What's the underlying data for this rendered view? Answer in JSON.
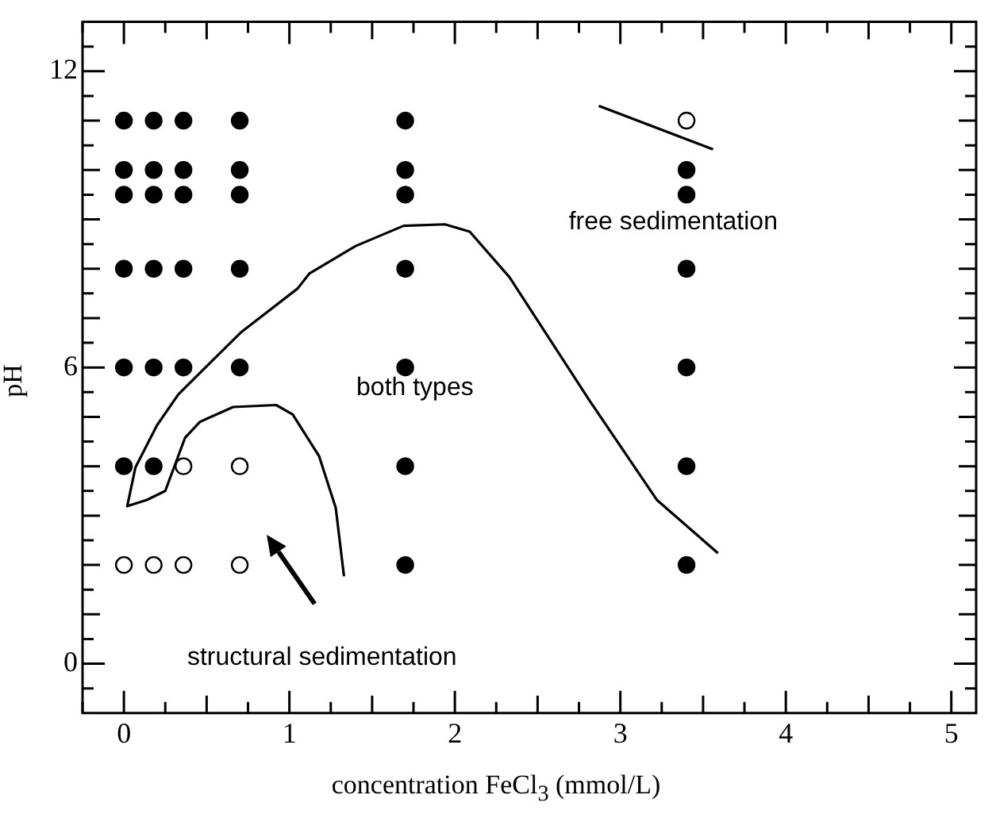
{
  "chart_data": {
    "type": "scatter",
    "xlabel": "concentration FeCl$_{3}$ (mmol/L)",
    "ylabel": "pH",
    "xlim": [
      -0.25,
      5.15
    ],
    "ylim": [
      -1,
      13
    ],
    "xticks": [
      {
        "value": -0.25,
        "label": null
      },
      0,
      {
        "value": 0.25,
        "label": null
      },
      {
        "value": 0.5,
        "label": null
      },
      {
        "value": 0.75,
        "label": null
      },
      1,
      {
        "value": 1.25,
        "label": null
      },
      {
        "value": 1.5,
        "label": null
      },
      {
        "value": 1.75,
        "label": null
      },
      2,
      {
        "value": 2.25,
        "label": null
      },
      {
        "value": 2.5,
        "label": null
      },
      {
        "value": 2.75,
        "label": null
      },
      3,
      {
        "value": 3.25,
        "label": null
      },
      {
        "value": 3.5,
        "label": null
      },
      {
        "value": 3.75,
        "label": null
      },
      4,
      {
        "value": 4.25,
        "label": null
      },
      {
        "value": 4.5,
        "label": null
      },
      {
        "value": 4.75,
        "label": null
      },
      5
    ],
    "yticks": [
      {
        "value": -0.5,
        "label": null
      },
      0,
      {
        "value": 0.5,
        "label": null
      },
      {
        "value": 1,
        "label": null
      },
      {
        "value": 1.5,
        "label": null
      },
      {
        "value": 2,
        "label": null
      },
      {
        "value": 2.5,
        "label": null
      },
      {
        "value": 3,
        "label": null
      },
      {
        "value": 3.5,
        "label": null
      },
      {
        "value": 4,
        "label": null
      },
      {
        "value": 4.5,
        "label": null
      },
      {
        "value": 5,
        "label": null
      },
      {
        "value": 5.5,
        "label": null
      },
      6,
      {
        "value": 6.5,
        "label": null
      },
      {
        "value": 7,
        "label": null
      },
      {
        "value": 7.5,
        "label": null
      },
      {
        "value": 8,
        "label": null
      },
      {
        "value": 8.5,
        "label": null
      },
      {
        "value": 9,
        "label": null
      },
      {
        "value": 9.5,
        "label": null
      },
      {
        "value": 10,
        "label": null
      },
      {
        "value": 10.5,
        "label": null
      },
      {
        "value": 11,
        "label": null
      },
      {
        "value": 11.5,
        "label": null
      },
      12,
      {
        "value": 12.5,
        "label": null
      }
    ],
    "grid": false,
    "legend": false,
    "series": [
      {
        "type": "scatter",
        "marker": "circle",
        "color": "#000000",
        "x": [
          0,
          0.18,
          0.36,
          0.7,
          0,
          0.18,
          0.36,
          0.7,
          0,
          0.18,
          0.36,
          0.7,
          0,
          0.18,
          0.36,
          0.7,
          0,
          0.18,
          0.36,
          0.7,
          0,
          0.18,
          1.7,
          1.7,
          1.7,
          1.7,
          1.7,
          1.7,
          1.7,
          3.4,
          3.4,
          3.4,
          3.4,
          3.4,
          3.4
        ],
        "values": [
          11,
          11,
          11,
          11,
          10,
          10,
          10,
          10,
          9.5,
          9.5,
          9.5,
          9.5,
          8,
          8,
          8,
          8,
          6,
          6,
          6,
          6,
          4,
          4,
          11,
          10,
          9.5,
          8,
          6,
          4,
          2,
          10,
          9.5,
          8,
          6,
          4,
          2
        ]
      },
      {
        "type": "scatter",
        "marker": "circle",
        "color": "#ffffff",
        "x": [
          0.36,
          0.7,
          0,
          0.18,
          0.36,
          0.7,
          3.4
        ],
        "values": [
          4,
          4,
          2,
          2,
          2,
          2,
          11
        ]
      },
      {
        "type": "line",
        "marker": "none",
        "color": "#000000",
        "x": [
          1.33,
          1.28,
          1.18,
          1.02,
          0.92,
          0.66,
          0.46,
          0.37,
          0.25,
          0.14,
          0.02,
          0.07,
          0.2,
          0.33,
          0.71,
          1.05,
          1.12,
          1.4,
          1.69,
          1.94,
          2.09,
          2.33,
          2.82,
          3.22,
          3.59
        ],
        "values": [
          1.77,
          3.16,
          4.2,
          5.05,
          5.24,
          5.2,
          4.9,
          4.58,
          3.5,
          3.32,
          3.19,
          3.98,
          4.83,
          5.46,
          6.72,
          7.6,
          7.9,
          8.46,
          8.87,
          8.9,
          8.75,
          7.83,
          5.3,
          3.32,
          2.24
        ]
      },
      {
        "type": "line",
        "marker": "none",
        "color": "#000000",
        "x": [
          2.87,
          3.56
        ],
        "values": [
          11.3,
          10.42
        ]
      }
    ],
    "annotations": [
      "free sedimentation",
      "both types",
      "structural sedimentation"
    ]
  }
}
